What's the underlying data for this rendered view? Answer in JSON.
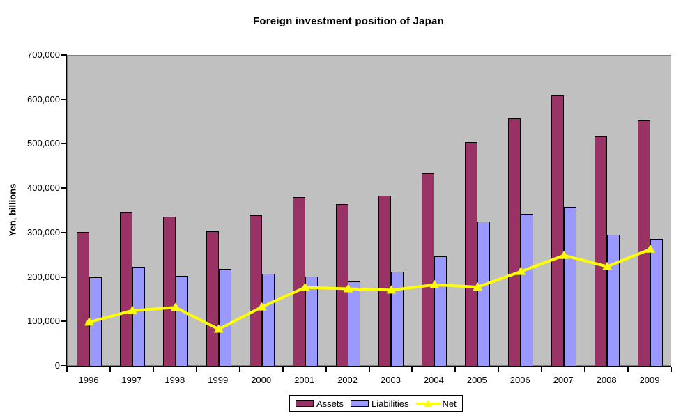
{
  "chart_data": {
    "type": "bar",
    "title": "Foreign investment position of Japan",
    "xlabel": "",
    "ylabel": "Yen, billions",
    "categories": [
      "1996",
      "1997",
      "1998",
      "1999",
      "2000",
      "2001",
      "2002",
      "2003",
      "2004",
      "2005",
      "2006",
      "2007",
      "2008",
      "2009"
    ],
    "series": [
      {
        "name": "Assets",
        "type": "bar",
        "color": "#993366",
        "values": [
          303000,
          347000,
          337000,
          305000,
          341000,
          381000,
          366000,
          385000,
          434000,
          505000,
          558000,
          610000,
          519000,
          556000
        ]
      },
      {
        "name": "Liabilities",
        "type": "bar",
        "color": "#9999FF",
        "values": [
          201000,
          224000,
          204000,
          220000,
          208000,
          202000,
          192000,
          213000,
          248000,
          326000,
          343000,
          360000,
          296000,
          288000
        ]
      },
      {
        "name": "Net",
        "type": "line",
        "color": "#FFFF00",
        "marker": "triangle",
        "values": [
          100000,
          126000,
          133000,
          84000,
          134000,
          178000,
          175000,
          172000,
          184000,
          179000,
          214000,
          250000,
          225000,
          264000
        ]
      }
    ],
    "ylim": [
      0,
      700000
    ],
    "ytick_step": 100000,
    "yticks": [
      "0",
      "100,000",
      "200,000",
      "300,000",
      "400,000",
      "500,000",
      "600,000",
      "700,000"
    ],
    "grid": false,
    "legend_position": "bottom",
    "plot_bg": "#C0C0C0",
    "plot_border": "#808080",
    "axis_color": "#000000"
  }
}
